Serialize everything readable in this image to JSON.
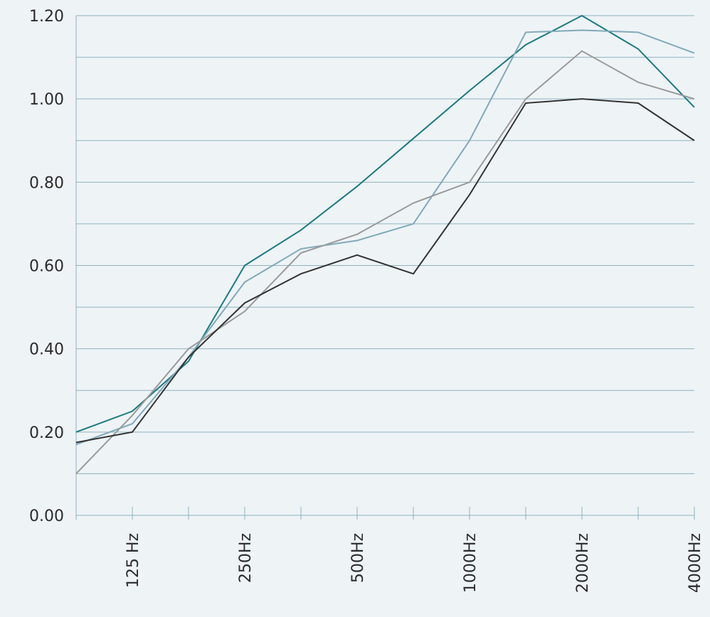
{
  "chart_data": {
    "type": "line",
    "categories": [
      null,
      "125 Hz",
      null,
      "250Hz",
      null,
      "500Hz",
      null,
      "1000Hz",
      null,
      "2000Hz",
      null,
      "4000Hz"
    ],
    "series": [
      {
        "color": "#1b7a82",
        "values": [
          0.2,
          0.25,
          0.37,
          0.6,
          0.685,
          0.79,
          0.905,
          1.02,
          1.13,
          1.2,
          1.12,
          0.98
        ]
      },
      {
        "color": "#80a9b9",
        "values": [
          0.17,
          0.22,
          0.38,
          0.56,
          0.64,
          0.66,
          0.7,
          0.9,
          1.16,
          1.165,
          1.16,
          1.11
        ]
      },
      {
        "color": "#9a9a9a",
        "values": [
          0.1,
          0.24,
          0.4,
          0.49,
          0.63,
          0.675,
          0.75,
          0.8,
          1.0,
          1.115,
          1.04,
          1.0
        ]
      },
      {
        "color": "#333333",
        "values": [
          0.175,
          0.2,
          0.38,
          0.51,
          0.58,
          0.625,
          0.58,
          0.77,
          0.99,
          1.0,
          0.99,
          0.9
        ]
      }
    ],
    "ylim": [
      0,
      1.2
    ],
    "yticks": [
      {
        "value": 0,
        "label": "0.00"
      },
      {
        "value": 0.2,
        "label": "0.20"
      },
      {
        "value": 0.4,
        "label": "0.40"
      },
      {
        "value": 0.6,
        "label": "0.60"
      },
      {
        "value": 0.8,
        "label": "0.80"
      },
      {
        "value": 1,
        "label": "1.00"
      },
      {
        "value": 1.2,
        "label": "1.20"
      }
    ],
    "minor_yticks": [
      0.1,
      0.3,
      0.5,
      0.7,
      0.9,
      1.1
    ],
    "grid": true,
    "grid_color": "#8fb3be",
    "axis_color": "#8fb3be"
  }
}
